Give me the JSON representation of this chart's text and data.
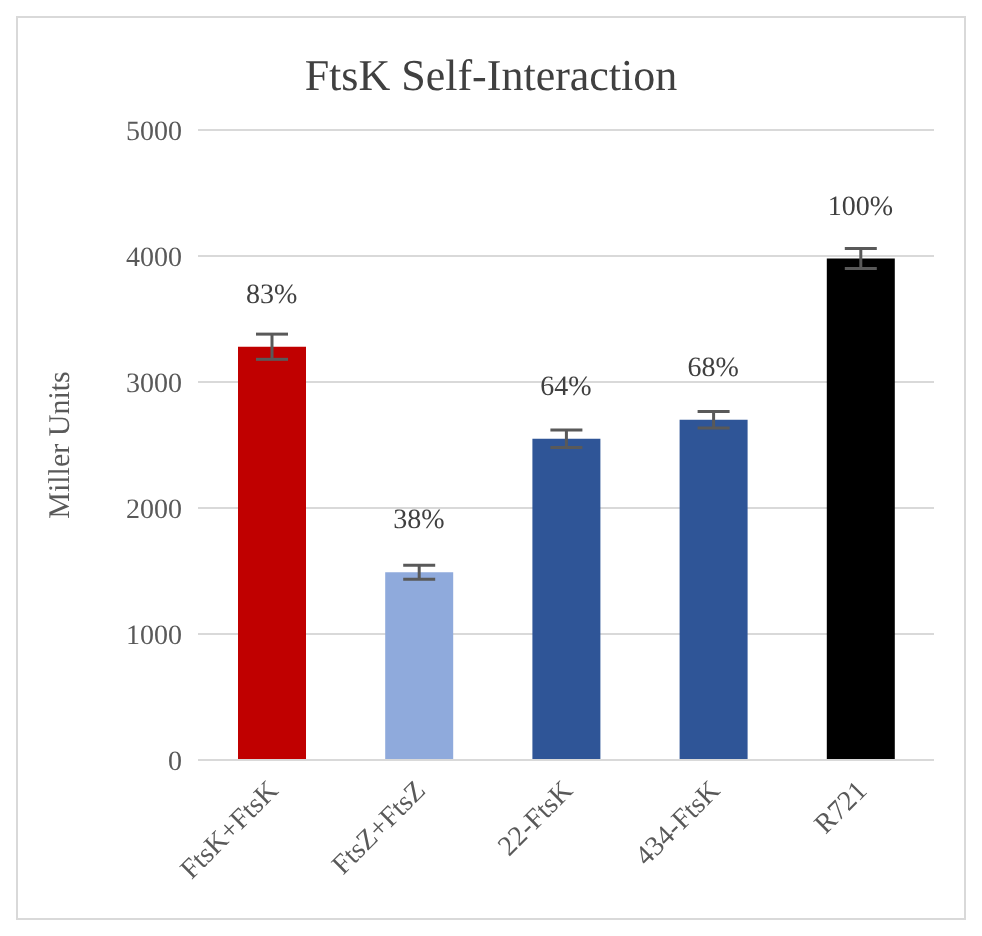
{
  "chart_data": {
    "type": "bar",
    "title": "FtsK Self-Interaction",
    "ylabel": "Miller Units",
    "categories": [
      "FtsK+FtsK",
      "FtsZ+FtsZ",
      "22-FtsK",
      "434-FtsK",
      "R721"
    ],
    "values": [
      3280,
      1490,
      2550,
      2700,
      3980
    ],
    "errors": [
      100,
      55,
      70,
      65,
      80
    ],
    "annotations": [
      {
        "text": "83%",
        "x": "FtsK+FtsK",
        "y": 3280
      },
      {
        "text": "38%",
        "x": "FtsZ+FtsZ",
        "y": 1490
      },
      {
        "text": "64%",
        "x": "22-FtsK",
        "y": 2550
      },
      {
        "text": "68%",
        "x": "434-FtsK",
        "y": 2700
      },
      {
        "text": "100%",
        "x": "R721",
        "y": 3980
      }
    ],
    "colors": [
      "#c00000",
      "#8faadc",
      "#2f5597",
      "#2f5597",
      "#000000"
    ],
    "ylim": [
      0,
      5000
    ],
    "yticks": [
      0,
      1000,
      2000,
      3000,
      4000,
      5000
    ],
    "grid": "y",
    "legend": false
  }
}
